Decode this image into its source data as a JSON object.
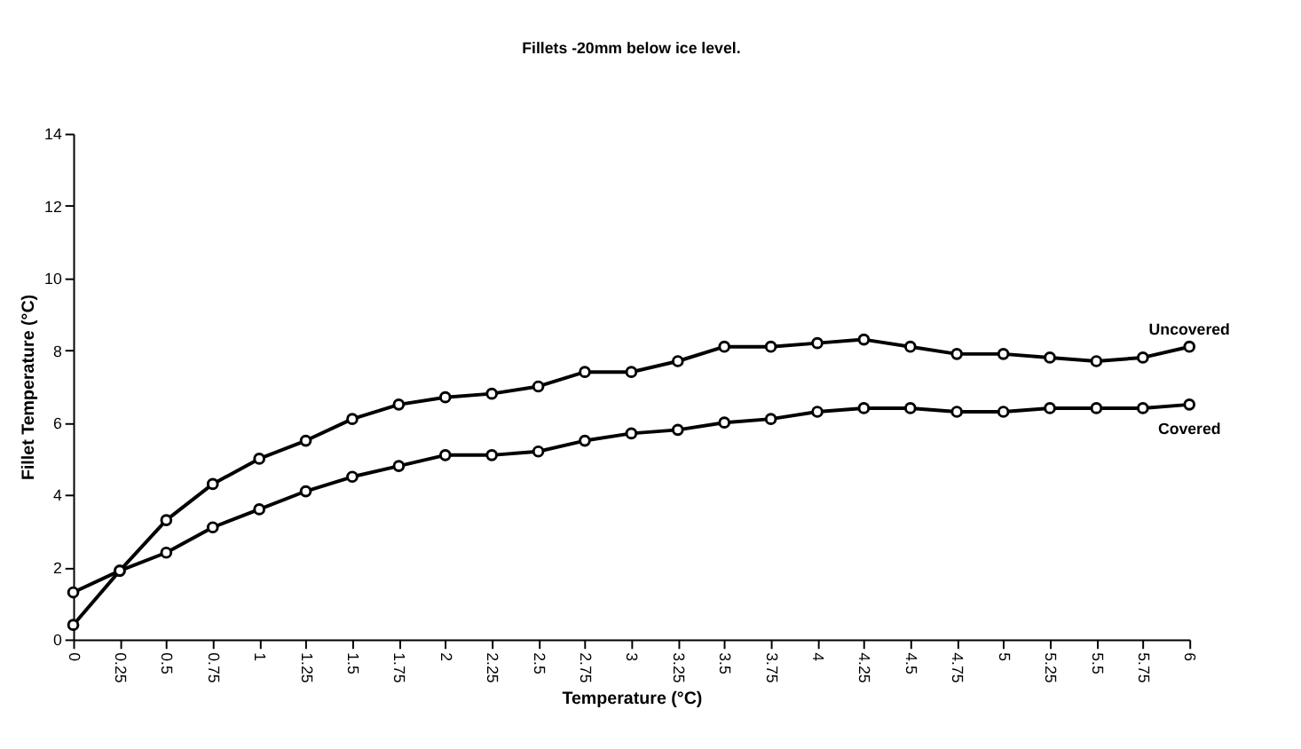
{
  "chart_data": {
    "type": "line",
    "title": "Fillets -20mm below ice level.",
    "xlabel": "Temperature (°C)",
    "ylabel": "Fillet Temperature (°C)",
    "categories": [
      "0",
      "0.25",
      "0.5",
      "0.75",
      "1",
      "1.25",
      "1.5",
      "1.75",
      "2",
      "2.25",
      "2.5",
      "2.75",
      "3",
      "3.25",
      "3.5",
      "3.75",
      "4",
      "4.25",
      "4.5",
      "4.75",
      "5",
      "5.25",
      "5.5",
      "5.75",
      "6"
    ],
    "series": [
      {
        "name": "Uncovered",
        "color": "#000000",
        "marker": "circle",
        "values": [
          1.3,
          1.9,
          3.3,
          4.3,
          5.0,
          5.5,
          6.1,
          6.5,
          6.7,
          6.8,
          7.0,
          7.4,
          7.4,
          7.7,
          8.1,
          8.1,
          8.2,
          8.3,
          8.1,
          7.9,
          7.9,
          7.8,
          7.7,
          7.8,
          8.1
        ]
      },
      {
        "name": "Covered",
        "color": "#000000",
        "marker": "circle",
        "values": [
          0.4,
          1.9,
          2.4,
          3.1,
          3.6,
          4.1,
          4.5,
          4.8,
          5.1,
          5.1,
          5.2,
          5.5,
          5.7,
          5.8,
          6.0,
          6.1,
          6.3,
          6.4,
          6.4,
          6.3,
          6.3,
          6.4,
          6.4,
          6.4,
          6.5
        ]
      }
    ],
    "ylim": [
      0,
      14
    ],
    "yticks": [
      0,
      2,
      4,
      6,
      8,
      10,
      12,
      14
    ],
    "grid": false,
    "legend": false,
    "line_style": "solid"
  }
}
